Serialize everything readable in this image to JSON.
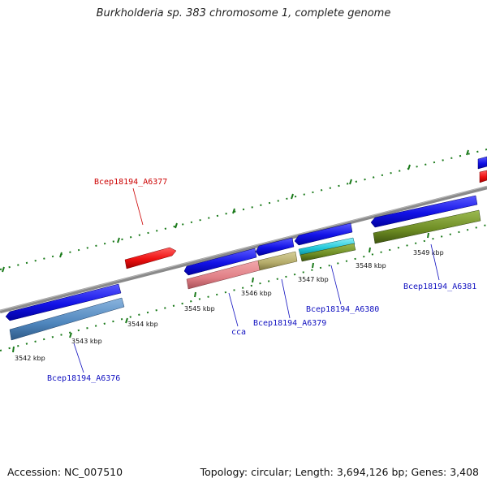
{
  "title": "Burkholderia sp. 383 chromosome 1, complete genome",
  "footer": {
    "accession": "Accession: NC_007510",
    "summary": "Topology: circular; Length: 3,694,126 bp; Genes: 3,408"
  },
  "ticks": [
    "3542 kbp",
    "3543 kbp",
    "3544 kbp",
    "3545 kbp",
    "3546 kbp",
    "3547 kbp",
    "3548 kbp",
    "3549 kbp"
  ],
  "gene_labels": {
    "a6376": "Bcep18194_A6376",
    "a6377": "Bcep18194_A6377",
    "cca": "cca",
    "a6379": "Bcep18194_A6379",
    "a6380": "Bcep18194_A6380",
    "a6381": "Bcep18194_A6381"
  },
  "colors": {
    "backbone": "#808080",
    "tick_green": "#1a7a1a",
    "gene_blue": "#1010e0",
    "gene_red": "#ee1111",
    "steel": "#5b8ec2",
    "pink": "#e07f86",
    "khaki": "#b7ae6e",
    "cyan": "#22c8d8",
    "olive": "#6b8a22",
    "label_blue": "#1010c0",
    "label_red": "#cc0000"
  }
}
